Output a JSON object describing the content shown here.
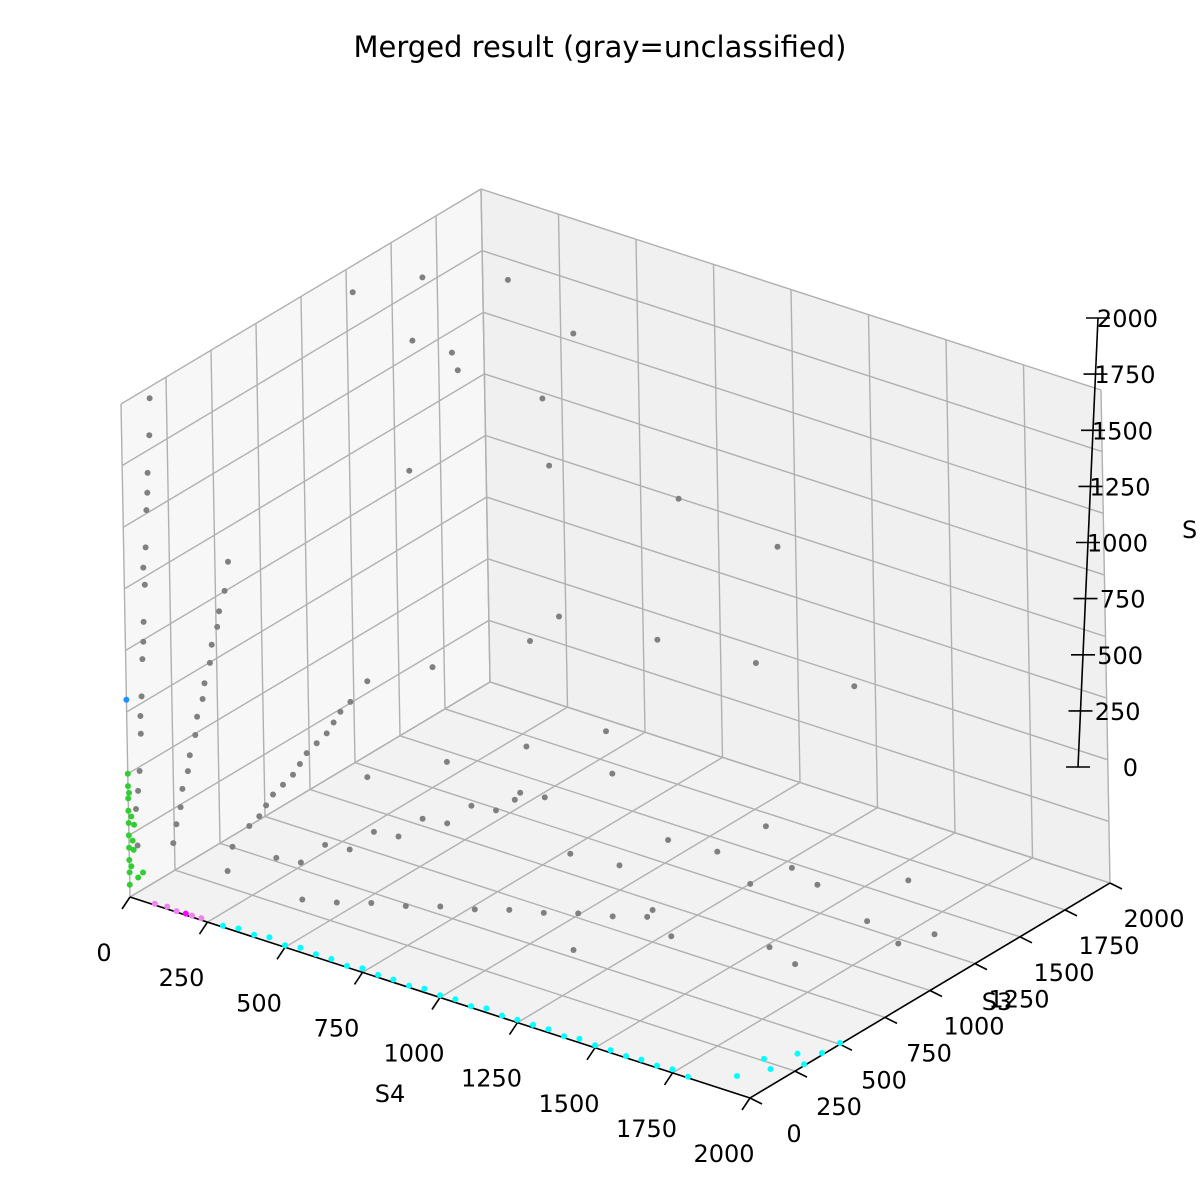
{
  "chart_data": {
    "type": "scatter",
    "projection": "3d",
    "title": "Merged result (gray=unclassified)",
    "x_axis": {
      "label": "S4",
      "range": [
        0,
        2000
      ],
      "ticks": [
        "0",
        "250",
        "500",
        "750",
        "1000",
        "1250",
        "1500",
        "1750",
        "2000"
      ]
    },
    "y_axis": {
      "label": "S3",
      "range": [
        0,
        2000
      ],
      "ticks": [
        "0",
        "250",
        "500",
        "750",
        "1000",
        "1250",
        "1500",
        "1750",
        "2000"
      ]
    },
    "z_axis": {
      "label": "S",
      "range": [
        0,
        2000
      ],
      "ticks": [
        "0",
        "250",
        "500",
        "750",
        "1000",
        "1250",
        "1500",
        "1750",
        "2000"
      ]
    },
    "grid": true,
    "series": [
      {
        "color": "#808080",
        "meaning": "unclassified",
        "points": [
          [
            10,
            30,
            200
          ],
          [
            15,
            40,
            500
          ],
          [
            20,
            50,
            800
          ],
          [
            25,
            60,
            1100
          ],
          [
            30,
            70,
            1400
          ],
          [
            35,
            80,
            1700
          ],
          [
            40,
            90,
            2000
          ],
          [
            10,
            25,
            350
          ],
          [
            18,
            45,
            650
          ],
          [
            22,
            55,
            950
          ],
          [
            28,
            65,
            1250
          ],
          [
            32,
            75,
            1550
          ],
          [
            12,
            35,
            420
          ],
          [
            16,
            48,
            720
          ],
          [
            24,
            58,
            1020
          ],
          [
            26,
            62,
            1320
          ],
          [
            34,
            78,
            1620
          ],
          [
            38,
            88,
            1850
          ],
          [
            120,
            40,
            250
          ],
          [
            140,
            50,
            400
          ],
          [
            160,
            60,
            550
          ],
          [
            180,
            70,
            700
          ],
          [
            200,
            80,
            850
          ],
          [
            220,
            90,
            1000
          ],
          [
            240,
            100,
            1150
          ],
          [
            260,
            110,
            1300
          ],
          [
            150,
            45,
            480
          ],
          [
            170,
            55,
            620
          ],
          [
            190,
            65,
            780
          ],
          [
            210,
            75,
            920
          ],
          [
            230,
            85,
            1080
          ],
          [
            250,
            95,
            1220
          ],
          [
            130,
            42,
            330
          ],
          [
            270,
            115,
            1420
          ],
          [
            300,
            60,
            300
          ],
          [
            350,
            70,
            400
          ],
          [
            400,
            80,
            500
          ],
          [
            450,
            90,
            600
          ],
          [
            500,
            100,
            700
          ],
          [
            550,
            110,
            800
          ],
          [
            600,
            120,
            900
          ],
          [
            650,
            130,
            1000
          ],
          [
            380,
            75,
            450
          ],
          [
            420,
            85,
            550
          ],
          [
            480,
            95,
            650
          ],
          [
            520,
            105,
            750
          ],
          [
            580,
            115,
            850
          ],
          [
            620,
            125,
            950
          ],
          [
            700,
            140,
            1100
          ],
          [
            200,
            200,
            100
          ],
          [
            300,
            300,
            150
          ],
          [
            400,
            400,
            200
          ],
          [
            500,
            500,
            250
          ],
          [
            600,
            600,
            300
          ],
          [
            700,
            700,
            350
          ],
          [
            800,
            800,
            400
          ],
          [
            350,
            350,
            130
          ],
          [
            450,
            450,
            180
          ],
          [
            550,
            550,
            230
          ],
          [
            650,
            650,
            280
          ],
          [
            750,
            750,
            330
          ],
          [
            850,
            850,
            380
          ],
          [
            500,
            100,
            150
          ],
          [
            700,
            140,
            200
          ],
          [
            900,
            180,
            250
          ],
          [
            1100,
            220,
            300
          ],
          [
            1300,
            260,
            350
          ],
          [
            1500,
            300,
            400
          ],
          [
            600,
            120,
            170
          ],
          [
            800,
            160,
            220
          ],
          [
            1000,
            200,
            270
          ],
          [
            1200,
            240,
            320
          ],
          [
            1400,
            280,
            370
          ],
          [
            900,
            900,
            150
          ],
          [
            1000,
            1000,
            100
          ],
          [
            1100,
            1100,
            200
          ],
          [
            1200,
            1200,
            150
          ],
          [
            1300,
            1300,
            250
          ],
          [
            700,
            1200,
            900
          ],
          [
            900,
            1400,
            800
          ],
          [
            1100,
            1600,
            700
          ],
          [
            1300,
            1800,
            600
          ],
          [
            800,
            1700,
            1200
          ],
          [
            1000,
            1900,
            1000
          ],
          [
            400,
            900,
            1500
          ],
          [
            600,
            1300,
            1700
          ],
          [
            300,
            1100,
            1900
          ],
          [
            500,
            1500,
            1300
          ],
          [
            900,
            600,
            500
          ],
          [
            1100,
            800,
            600
          ],
          [
            1400,
            500,
            300
          ],
          [
            1600,
            700,
            400
          ],
          [
            1800,
            600,
            200
          ],
          [
            1700,
            900,
            350
          ],
          [
            1500,
            1100,
            250
          ],
          [
            1900,
            1000,
            150
          ],
          [
            100,
            1500,
            1900
          ],
          [
            200,
            1800,
            1800
          ],
          [
            50,
            1200,
            1950
          ],
          [
            150,
            1600,
            1500
          ],
          [
            250,
            1400,
            1700
          ],
          [
            350,
            1900,
            1600
          ],
          [
            1200,
            400,
            100
          ],
          [
            1400,
            600,
            150
          ],
          [
            1600,
            800,
            100
          ],
          [
            1800,
            1000,
            200
          ],
          [
            1900,
            1200,
            100
          ],
          [
            1700,
            1400,
            150
          ],
          [
            600,
            300,
            600
          ],
          [
            800,
            400,
            700
          ],
          [
            1000,
            500,
            800
          ],
          [
            1200,
            600,
            900
          ],
          [
            700,
            500,
            1000
          ],
          [
            900,
            700,
            1100
          ]
        ]
      },
      {
        "color": "#00ffff",
        "meaning": "cyan cluster",
        "points": [
          [
            300,
            0,
            5
          ],
          [
            400,
            0,
            10
          ],
          [
            500,
            0,
            8
          ],
          [
            600,
            0,
            12
          ],
          [
            700,
            0,
            6
          ],
          [
            800,
            0,
            10
          ],
          [
            900,
            0,
            7
          ],
          [
            1000,
            0,
            9
          ],
          [
            1100,
            0,
            5
          ],
          [
            1200,
            0,
            8
          ],
          [
            1300,
            0,
            11
          ],
          [
            1400,
            0,
            6
          ],
          [
            1500,
            0,
            10
          ],
          [
            1600,
            0,
            7
          ],
          [
            1700,
            0,
            9
          ],
          [
            1800,
            0,
            5
          ],
          [
            1900,
            100,
            5
          ],
          [
            1950,
            200,
            10
          ],
          [
            2000,
            300,
            6
          ],
          [
            2000,
            400,
            8
          ],
          [
            2000,
            500,
            5
          ],
          [
            1950,
            350,
            7
          ],
          [
            1900,
            250,
            9
          ],
          [
            350,
            0,
            15
          ],
          [
            450,
            0,
            20
          ],
          [
            550,
            0,
            18
          ],
          [
            650,
            0,
            14
          ],
          [
            750,
            0,
            16
          ],
          [
            850,
            0,
            12
          ],
          [
            950,
            0,
            15
          ],
          [
            1050,
            0,
            13
          ],
          [
            1150,
            0,
            17
          ],
          [
            1250,
            0,
            12
          ],
          [
            1350,
            0,
            14
          ],
          [
            1450,
            0,
            16
          ],
          [
            1550,
            0,
            11
          ],
          [
            1650,
            0,
            13
          ],
          [
            1750,
            0,
            15
          ]
        ]
      },
      {
        "color": "#32cd32",
        "meaning": "green cluster",
        "points": [
          [
            0,
            0,
            50
          ],
          [
            0,
            0,
            100
          ],
          [
            0,
            0,
            150
          ],
          [
            0,
            0,
            200
          ],
          [
            0,
            0,
            250
          ],
          [
            0,
            0,
            300
          ],
          [
            0,
            0,
            350
          ],
          [
            0,
            0,
            400
          ],
          [
            0,
            0,
            450
          ],
          [
            0,
            0,
            500
          ],
          [
            0,
            10,
            120
          ],
          [
            0,
            20,
            220
          ],
          [
            0,
            15,
            320
          ],
          [
            0,
            5,
            420
          ],
          [
            0,
            25,
            180
          ],
          [
            0,
            30,
            280
          ],
          [
            10,
            30,
            70
          ],
          [
            20,
            40,
            90
          ]
        ]
      },
      {
        "color": "#ee82ee",
        "meaning": "violet cluster",
        "points": [
          [
            80,
            0,
            5
          ],
          [
            120,
            0,
            10
          ],
          [
            150,
            0,
            4
          ],
          [
            200,
            0,
            6
          ],
          [
            230,
            0,
            8
          ]
        ]
      },
      {
        "color": "#ff00ff",
        "meaning": "magenta cluster",
        "points": [
          [
            180,
            0,
            6
          ]
        ]
      },
      {
        "color": "#1e90ff",
        "meaning": "blue cluster",
        "points": [
          [
            0,
            0,
            800
          ]
        ]
      }
    ]
  }
}
